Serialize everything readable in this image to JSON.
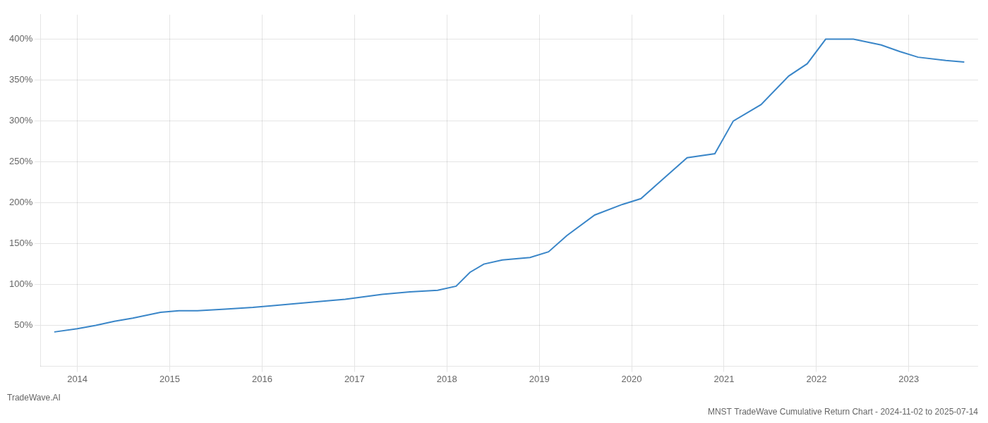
{
  "chart_data": {
    "type": "line",
    "title": "MNST TradeWave Cumulative Return Chart - 2024-11-02 to 2025-07-14",
    "annotations": [
      "TradeWave.AI"
    ],
    "color": "#3a86c8",
    "grid": true,
    "x": [
      2013.75,
      2014.0,
      2014.2,
      2014.4,
      2014.6,
      2014.9,
      2015.1,
      2015.3,
      2015.6,
      2015.9,
      2016.1,
      2016.4,
      2016.7,
      2016.9,
      2017.1,
      2017.3,
      2017.6,
      2017.9,
      2018.1,
      2018.25,
      2018.4,
      2018.6,
      2018.9,
      2019.1,
      2019.3,
      2019.6,
      2019.9,
      2020.1,
      2020.3,
      2020.6,
      2020.9,
      2021.1,
      2021.4,
      2021.7,
      2021.9,
      2022.1,
      2022.4,
      2022.7,
      2022.9,
      2023.1,
      2023.4,
      2023.6
    ],
    "values": [
      42,
      46,
      50,
      55,
      59,
      66,
      68,
      68,
      70,
      72,
      74,
      77,
      80,
      82,
      85,
      88,
      91,
      93,
      98,
      115,
      125,
      130,
      133,
      140,
      160,
      185,
      198,
      205,
      225,
      255,
      260,
      300,
      320,
      355,
      370,
      400,
      400,
      393,
      385,
      378,
      374,
      372
    ],
    "xlim": [
      2013.6,
      2023.75
    ],
    "xticks": [
      2014,
      2015,
      2016,
      2017,
      2018,
      2019,
      2020,
      2021,
      2022,
      2023
    ],
    "ylim": [
      0,
      430
    ],
    "yticks": [
      {
        "value": 50,
        "label": "50%"
      },
      {
        "value": 100,
        "label": "100%"
      },
      {
        "value": 150,
        "label": "150%"
      },
      {
        "value": 200,
        "label": "200%"
      },
      {
        "value": 250,
        "label": "250%"
      },
      {
        "value": 300,
        "label": "300%"
      },
      {
        "value": 350,
        "label": "350%"
      },
      {
        "value": 400,
        "label": "400%"
      }
    ]
  }
}
